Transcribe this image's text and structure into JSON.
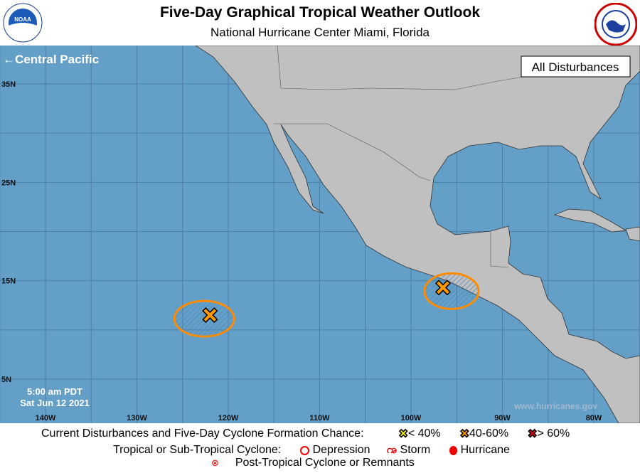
{
  "header": {
    "title": "Five-Day Graphical Tropical Weather Outlook",
    "subtitle": "National Hurricane Center  Miami, Florida",
    "left_logo": "NOAA",
    "right_logo": "NATIONAL WEATHER SERVICE"
  },
  "map": {
    "nav_link": "←Central Pacific",
    "view_label": "All Disturbances",
    "timestamp_time": "5:00 am PDT",
    "timestamp_date": "Sat Jun 12 2021",
    "watermark": "www.hurricanes.gov",
    "lat_labels": [
      "35N",
      "25N",
      "15N",
      "5N"
    ],
    "lon_labels": [
      "140W",
      "130W",
      "120W",
      "110W",
      "100W",
      "90W",
      "80W"
    ],
    "colors": {
      "ocean": "#649fc8",
      "land": "#c0c0c0",
      "area_outline": "#ff8c00",
      "low": "#ffff00",
      "medium": "#ff9900",
      "high": "#ee0000"
    },
    "disturbances": [
      {
        "lat": 11.5,
        "lon": -122,
        "chance": "40-60%"
      },
      {
        "lat": 14.3,
        "lon": -96.5,
        "chance": "40-60%"
      }
    ]
  },
  "legend": {
    "row1_label": "Current Disturbances and Five-Day Cyclone Formation Chance:",
    "low": "< 40%",
    "medium": "40-60%",
    "high": "> 60%",
    "row2_label": "Tropical or Sub-Tropical Cyclone:",
    "depression": "Depression",
    "storm": "Storm",
    "hurricane": "Hurricane",
    "post_tropical": "Post-Tropical Cyclone or Remnants"
  }
}
